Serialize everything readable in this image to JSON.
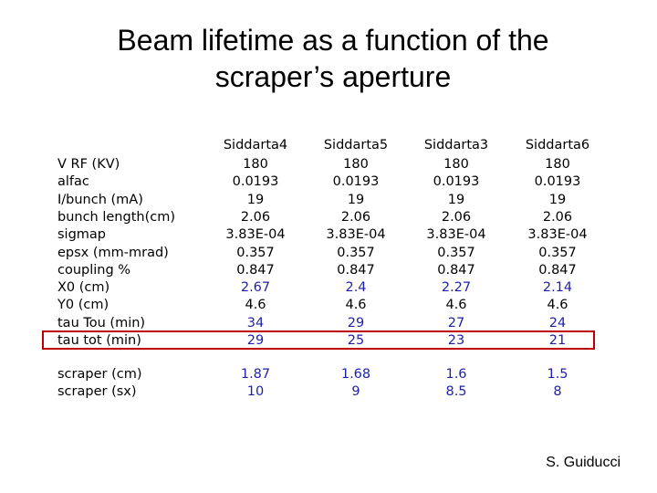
{
  "title_lines": [
    "Beam lifetime as a function of the",
    "scraper’s aperture"
  ],
  "columns": [
    "Siddarta4",
    "Siddarta5",
    "Siddarta3",
    "Siddarta6"
  ],
  "rows": [
    {
      "label": "V RF (KV)",
      "values": [
        "180",
        "180",
        "180",
        "180"
      ],
      "blue": false
    },
    {
      "label": "alfac",
      "values": [
        "0.0193",
        "0.0193",
        "0.0193",
        "0.0193"
      ],
      "blue": false
    },
    {
      "label": "I/bunch (mA)",
      "values": [
        "19",
        "19",
        "19",
        "19"
      ],
      "blue": false
    },
    {
      "label": "bunch length(cm)",
      "values": [
        "2.06",
        "2.06",
        "2.06",
        "2.06"
      ],
      "blue": false
    },
    {
      "label": "sigmap",
      "values": [
        "3.83E-04",
        "3.83E-04",
        "3.83E-04",
        "3.83E-04"
      ],
      "blue": false
    },
    {
      "label": "epsx (mm-mrad)",
      "values": [
        "0.357",
        "0.357",
        "0.357",
        "0.357"
      ],
      "blue": false
    },
    {
      "label": "coupling %",
      "values": [
        "0.847",
        "0.847",
        "0.847",
        "0.847"
      ],
      "blue": false
    },
    {
      "label": "X0 (cm)",
      "values": [
        "2.67",
        "2.4",
        "2.27",
        "2.14"
      ],
      "blue": true
    },
    {
      "label": "Y0 (cm)",
      "values": [
        "4.6",
        "4.6",
        "4.6",
        "4.6"
      ],
      "blue": false
    },
    {
      "label": "tau Tou (min)",
      "values": [
        "34",
        "29",
        "27",
        "24"
      ],
      "blue": true
    },
    {
      "label": "tau tot (min)",
      "values": [
        "29",
        "25",
        "23",
        "21"
      ],
      "blue": true
    }
  ],
  "scraper_rows": [
    {
      "label": "scraper (cm)",
      "values": [
        "1.87",
        "1.68",
        "1.6",
        "1.5"
      ],
      "blue": true
    },
    {
      "label": "scraper (sx)",
      "values": [
        "10",
        "9",
        "8.5",
        "8"
      ],
      "blue": true
    }
  ],
  "highlighted_row": "tau tot (min)",
  "highlight_color": "#c00000",
  "value_blue": "#1f1fa8",
  "credit": "S. Guiducci"
}
